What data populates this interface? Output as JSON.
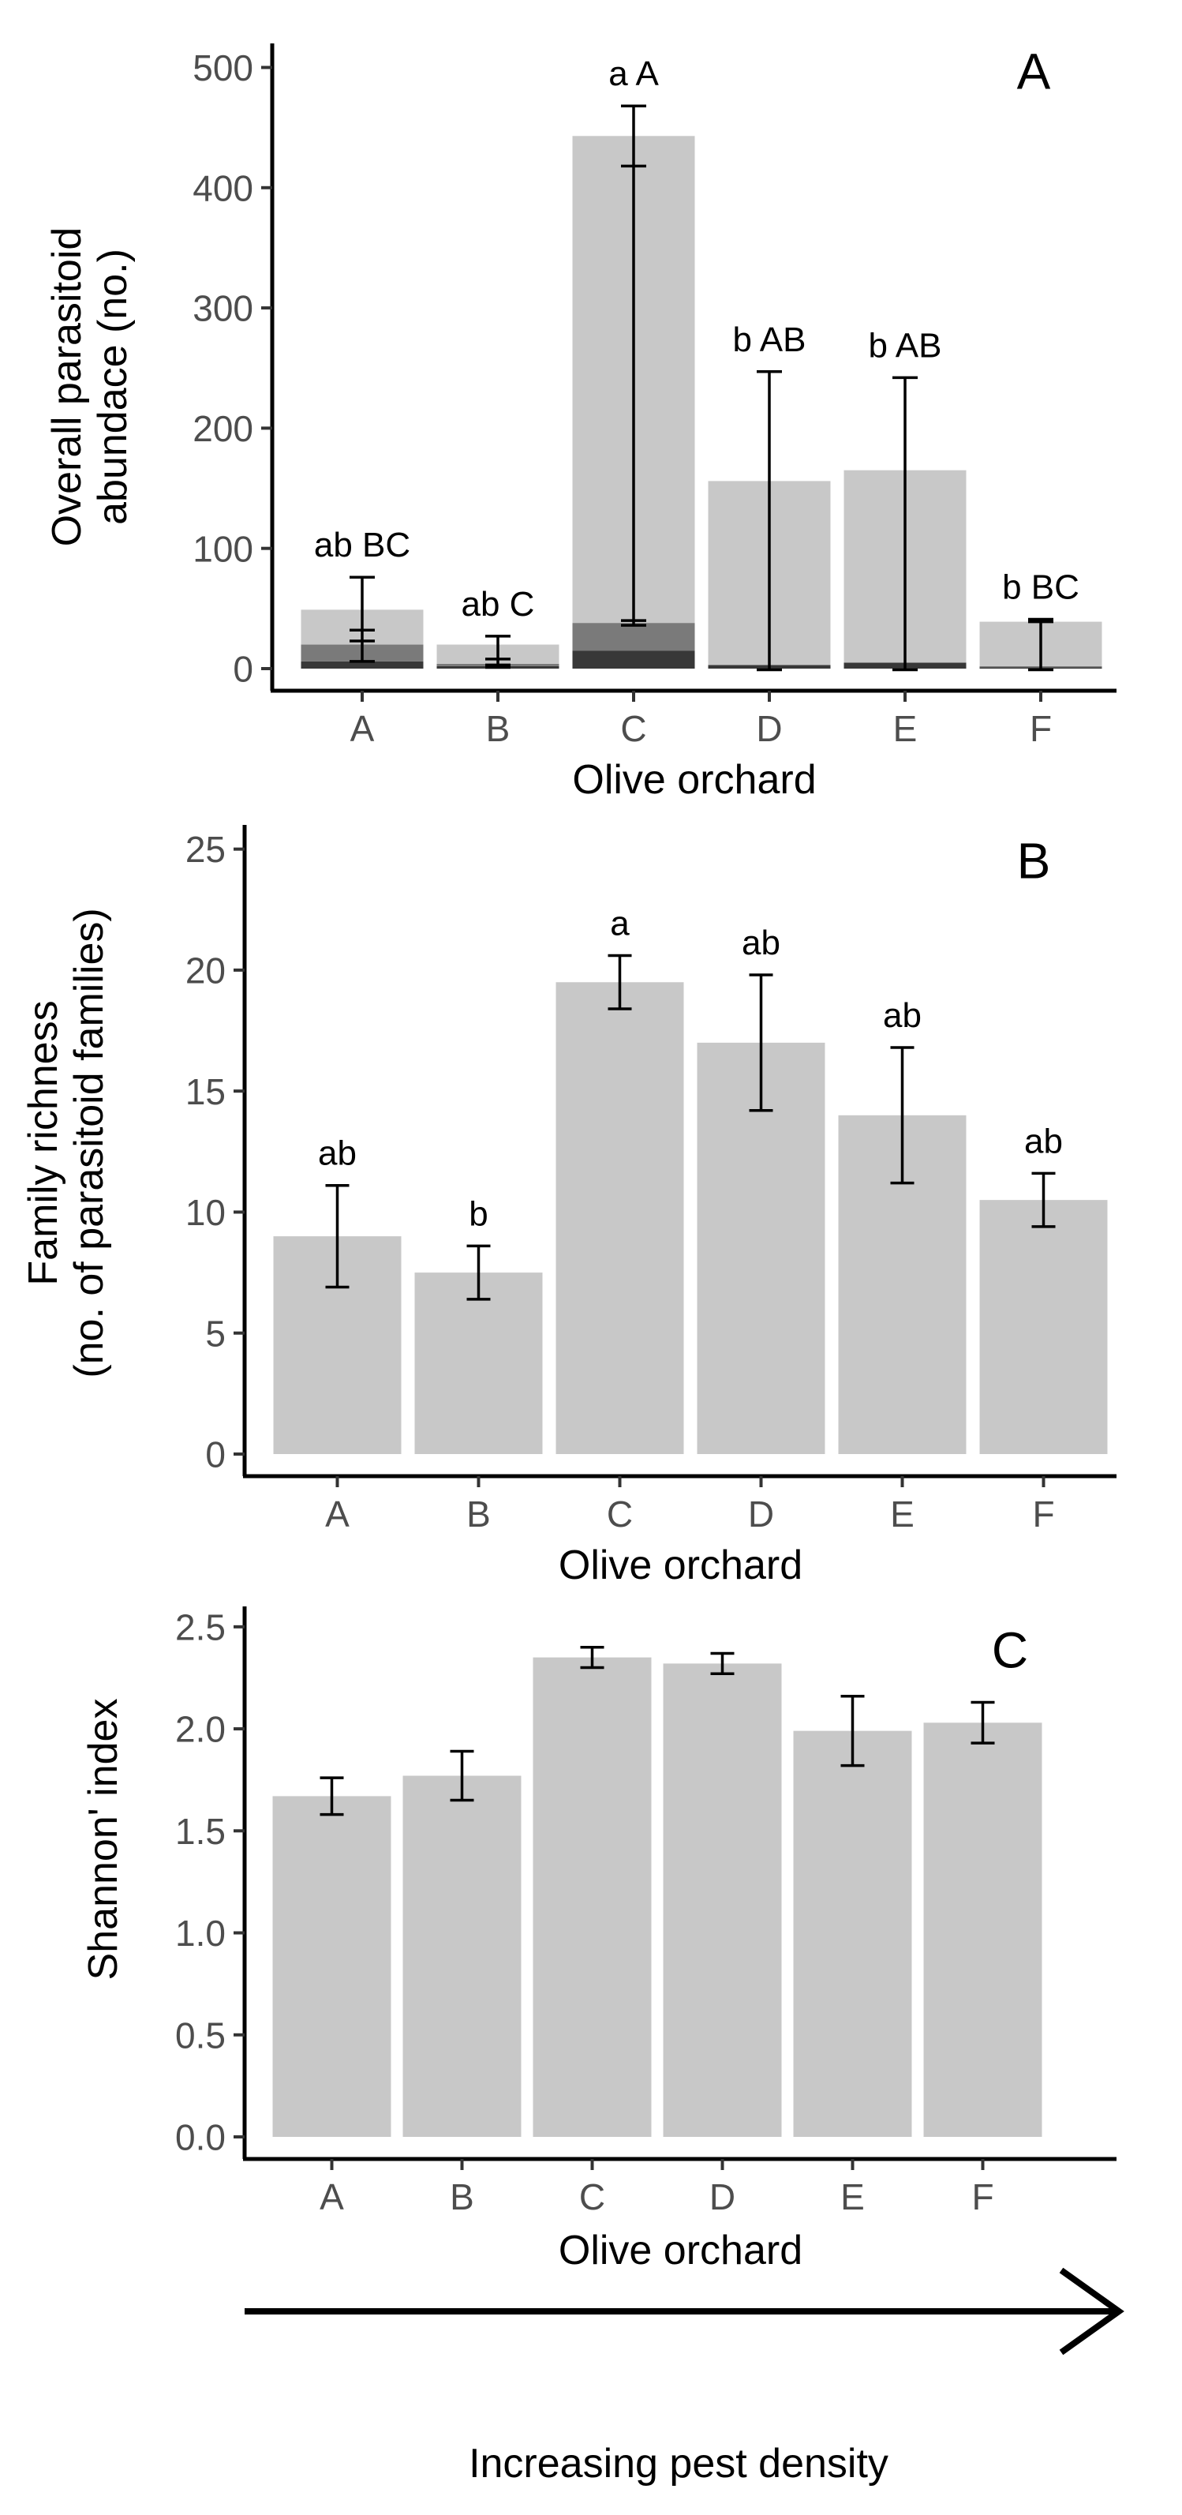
{
  "chart_data": [
    {
      "type": "bar",
      "stacked": true,
      "panel_label": "A",
      "categories": [
        "A",
        "B",
        "C",
        "D",
        "E",
        "F"
      ],
      "xlabel": "Olive orchard",
      "ylabel_lines": [
        "Overall parasitoid",
        "abundace (no.)"
      ],
      "ylim": [
        0,
        520
      ],
      "yticks": [
        0,
        100,
        200,
        300,
        400,
        500
      ],
      "ytick_labels": [
        "0",
        "100",
        "200",
        "300",
        "400",
        "500"
      ],
      "series": [
        {
          "name": "layer-dark",
          "color": "#383838",
          "values": [
            6,
            2,
            15,
            3,
            5,
            1
          ],
          "errors": [
            null,
            null,
            null,
            null,
            null,
            null
          ]
        },
        {
          "name": "layer-mid",
          "color": "#7a7a7a",
          "values": [
            14,
            2,
            23,
            0,
            0,
            1
          ],
          "errors": [
            9,
            3,
            3,
            null,
            null,
            1
          ]
        },
        {
          "name": "layer-light",
          "color": "#c8c8c8",
          "values": [
            29,
            16,
            405,
            153,
            160,
            37
          ],
          "errors": [
            26,
            9,
            25,
            92,
            77,
            1
          ]
        }
      ],
      "error_hi_ticks": [
        [
          76,
          32
        ],
        [
          27,
          8
        ],
        [
          468,
          40
        ],
        [
          247
        ],
        [
          242
        ],
        [
          41
        ]
      ],
      "error_lo_ticks": [
        [
          23,
          6
        ],
        [
          3,
          1
        ],
        [
          418,
          36
        ],
        [
          -1
        ],
        [
          -1
        ],
        [
          39,
          -1
        ]
      ],
      "significance": [
        "ab BC",
        "ab C",
        "a A",
        "b AB",
        "b AB",
        "b BC"
      ]
    },
    {
      "type": "bar",
      "panel_label": "B",
      "categories": [
        "A",
        "B",
        "C",
        "D",
        "E",
        "F"
      ],
      "xlabel": "Olive orchard",
      "ylabel_lines": [
        "Family richness",
        "(no. of parasitoid families)"
      ],
      "ylim": [
        0,
        26
      ],
      "yticks": [
        0,
        5,
        10,
        15,
        20,
        25
      ],
      "ytick_labels": [
        "0",
        "5",
        "10",
        "15",
        "20",
        "25"
      ],
      "values": [
        9.0,
        7.5,
        19.5,
        17.0,
        14.0,
        10.5
      ],
      "errors": [
        2.1,
        1.1,
        1.1,
        2.8,
        2.8,
        1.1
      ],
      "color": "#c8c8c8",
      "significance": [
        "ab",
        "b",
        "a",
        "ab",
        "ab",
        "ab"
      ]
    },
    {
      "type": "bar",
      "panel_label": "C",
      "categories": [
        "A",
        "B",
        "C",
        "D",
        "E",
        "F"
      ],
      "xlabel": "Olive orchard",
      "ylabel_lines": [
        "Shannon' index"
      ],
      "ylim": [
        0,
        2.6
      ],
      "yticks": [
        0,
        0.5,
        1.0,
        1.5,
        2.0,
        2.5
      ],
      "ytick_labels": [
        "0.0",
        "0.5",
        "1.0",
        "1.5",
        "2.0",
        "2.5"
      ],
      "values": [
        1.67,
        1.77,
        2.35,
        2.32,
        1.99,
        2.03
      ],
      "errors": [
        0.09,
        0.12,
        0.05,
        0.05,
        0.17,
        0.1
      ],
      "color": "#c8c8c8",
      "significance": []
    }
  ],
  "footer": {
    "arrow_caption": "Increasing pest density"
  }
}
